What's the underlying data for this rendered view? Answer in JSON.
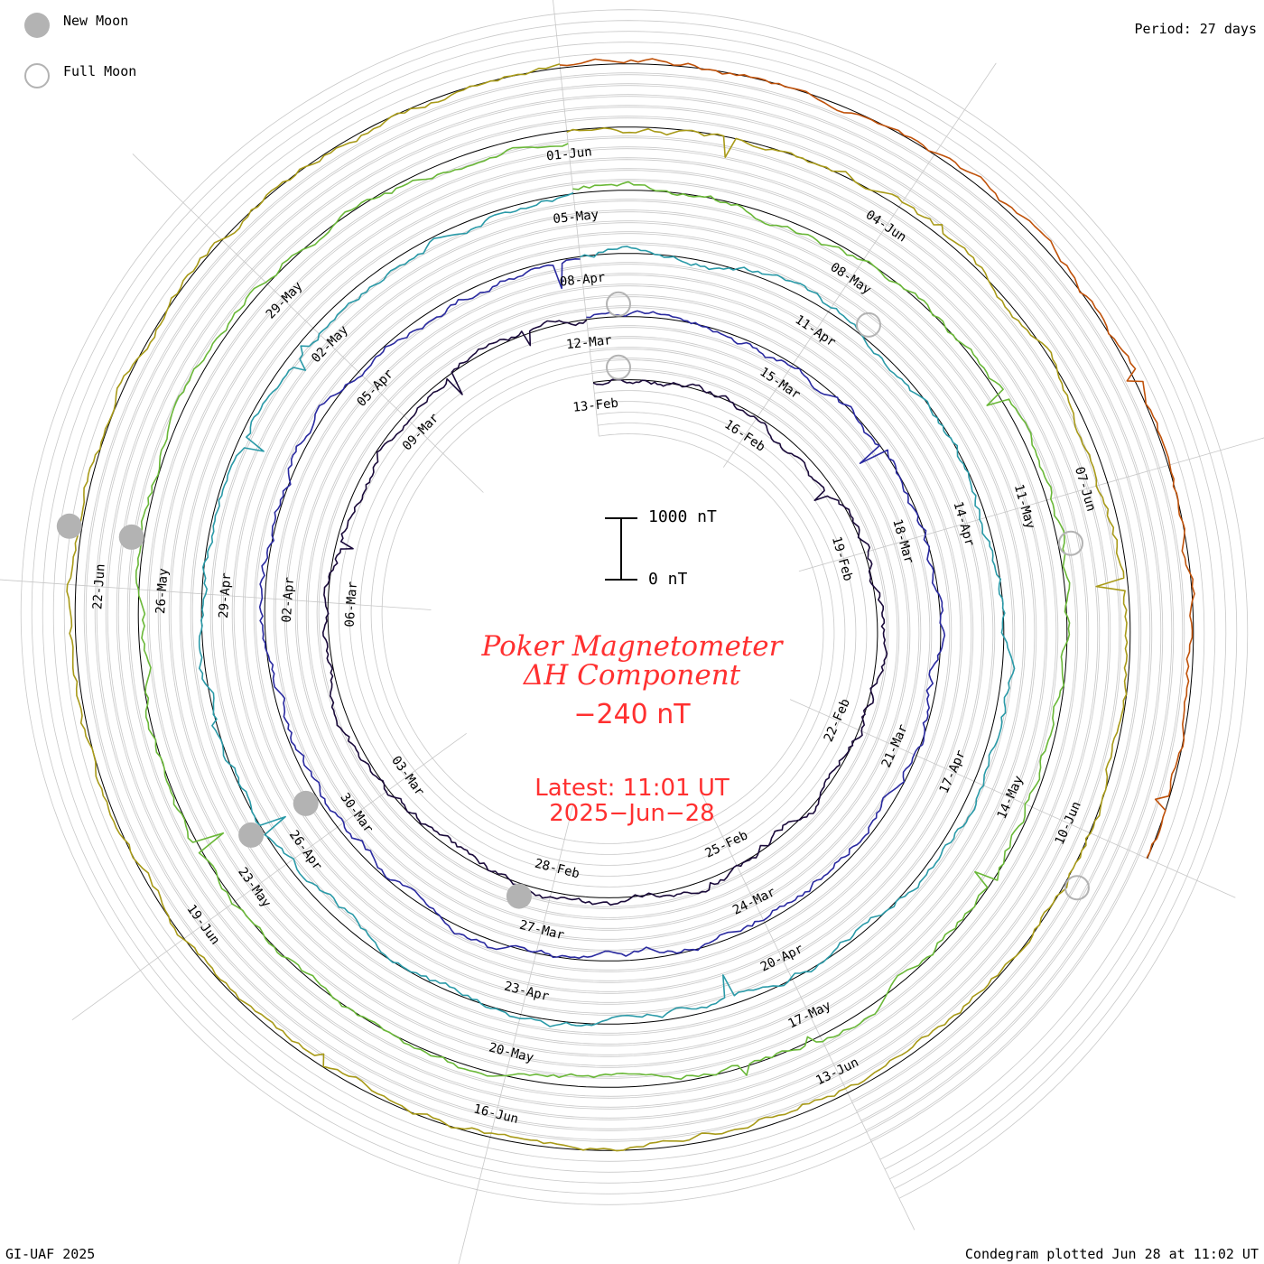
{
  "legend": {
    "new_moon_label": "New Moon",
    "full_moon_label": "Full Moon",
    "new_moon_color": "#b3b3b3"
  },
  "period_label": "Period: 27 days",
  "center": {
    "title_line1": "Poker Magnetometer",
    "title_line2": "ΔH Component",
    "current_value": "−240 nT",
    "latest_line1": "Latest: 11:01 UT",
    "latest_line2": "2025−Jun−28",
    "text_color": "#ff3030"
  },
  "scale_bar": {
    "top_label": "1000 nT",
    "bottom_label": "0 nT"
  },
  "footer": {
    "credit": "GI-UAF 2025",
    "plotted": "Condegram plotted Jun 28 at 11:02 UT"
  },
  "chart_data": {
    "type": "line",
    "chart_style": "spiral condegram (27-day period per turn)",
    "series_colors": [
      "#1a0a3a",
      "#2a2aa0",
      "#2a9aa8",
      "#6ab838",
      "#a89a18",
      "#c0520a",
      "#c01010"
    ],
    "grid": true,
    "date_labels": [
      "13-Feb",
      "16-Feb",
      "19-Feb",
      "22-Feb",
      "25-Feb",
      "28-Feb",
      "03-Mar",
      "06-Mar",
      "09-Mar",
      "12-Mar",
      "15-Mar",
      "18-Mar",
      "21-Mar",
      "24-Mar",
      "27-Mar",
      "30-Mar",
      "02-Apr",
      "05-Apr",
      "08-Apr",
      "11-Apr",
      "14-Apr",
      "17-Apr",
      "20-Apr",
      "23-Apr",
      "26-Apr",
      "29-Apr",
      "02-May",
      "05-May",
      "08-May",
      "11-May",
      "14-May",
      "17-May",
      "20-May",
      "23-May",
      "26-May",
      "29-May",
      "01-Jun",
      "04-Jun",
      "07-Jun",
      "10-Jun",
      "13-Jun",
      "16-Jun",
      "19-Jun",
      "22-Jun"
    ],
    "new_moon_label_indices": [
      5,
      15,
      24,
      34,
      43
    ],
    "full_moon_label_indices": [
      0,
      9,
      19,
      29,
      39
    ],
    "latest_value_nT": -240,
    "scale_nT": [
      0,
      1000
    ]
  }
}
